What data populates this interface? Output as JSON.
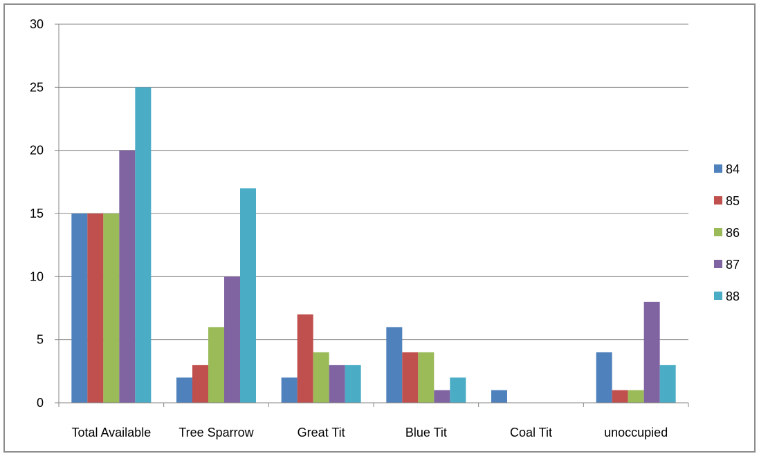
{
  "chart_data": {
    "type": "bar",
    "title": "",
    "xlabel": "",
    "ylabel": "",
    "categories": [
      "Total Available",
      "Tree Sparrow",
      "Great Tit",
      "Blue Tit",
      "Coal Tit",
      "unoccupied"
    ],
    "series": [
      {
        "name": "84",
        "color": "#4f81bd",
        "values": [
          15,
          2,
          2,
          6,
          1,
          4
        ]
      },
      {
        "name": "85",
        "color": "#c0504d",
        "values": [
          15,
          3,
          7,
          4,
          0,
          1
        ]
      },
      {
        "name": "86",
        "color": "#9bbb59",
        "values": [
          15,
          6,
          4,
          4,
          0,
          1
        ]
      },
      {
        "name": "87",
        "color": "#8064a2",
        "values": [
          20,
          10,
          3,
          1,
          0,
          8
        ]
      },
      {
        "name": "88",
        "color": "#4bacc6",
        "values": [
          25,
          17,
          3,
          2,
          0,
          3
        ]
      }
    ],
    "ylim": [
      0,
      30
    ],
    "yticks": [
      "0",
      "5",
      "10",
      "15",
      "20",
      "25",
      "30"
    ],
    "grid": "horizontal",
    "legend_position": "right"
  }
}
